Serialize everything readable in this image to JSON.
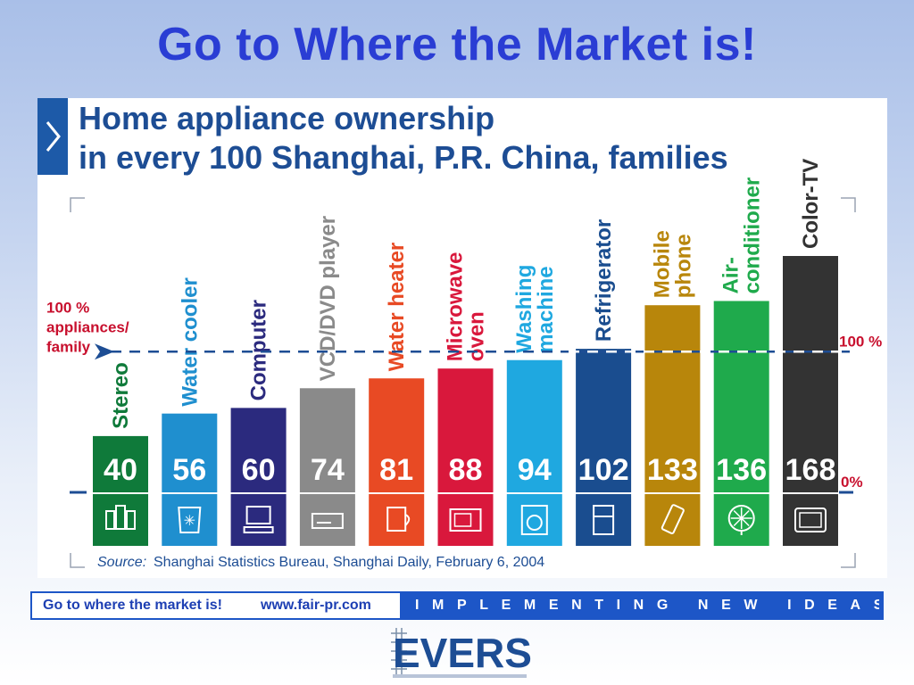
{
  "slide": {
    "title": "Go to Where the Market is!"
  },
  "chart_data": {
    "type": "bar",
    "title_lines": [
      "Home appliance ownership",
      "in every 100 Shanghai, P.R. China, families"
    ],
    "categories": [
      "Stereo",
      "Water cooler",
      "Computer",
      "VCD/DVD player",
      "Water heater",
      "Microwave oven",
      "Washing machine",
      "Refrigerator",
      "Mobile phone",
      "Air-conditioner",
      "Color-TV"
    ],
    "label_lines": [
      [
        "Stereo"
      ],
      [
        "Water cooler"
      ],
      [
        "Computer"
      ],
      [
        "VCD/DVD player"
      ],
      [
        "Water heater"
      ],
      [
        "Microwave",
        "oven"
      ],
      [
        "Washing",
        "machine"
      ],
      [
        "Refrigerator"
      ],
      [
        "Mobile",
        "phone"
      ],
      [
        "Air-",
        "conditioner"
      ],
      [
        "Color-TV"
      ]
    ],
    "values": [
      40,
      56,
      60,
      74,
      81,
      88,
      94,
      102,
      133,
      136,
      168
    ],
    "value_labels": [
      "40",
      "56",
      "60",
      "74",
      "81",
      "88",
      "94",
      "102",
      "133",
      "136",
      "168"
    ],
    "colors": [
      "#0f7a3a",
      "#1f8fcf",
      "#2b2a7e",
      "#8a8a8a",
      "#e84a24",
      "#d9183c",
      "#1fa8e0",
      "#1a4d8f",
      "#b8860b",
      "#1faa4c",
      "#333333"
    ],
    "icons": [
      "stereo-icon",
      "water-cooler-icon",
      "computer-icon",
      "dvd-player-icon",
      "water-heater-icon",
      "microwave-icon",
      "washing-machine-icon",
      "refrigerator-icon",
      "mobile-phone-icon",
      "air-conditioner-icon",
      "tv-icon"
    ],
    "reference_line": {
      "value": 100,
      "left_label": [
        "100 %",
        "appliances/",
        "family"
      ],
      "right_label": "100 %"
    },
    "zero_label": "0%",
    "source_label": "Source:",
    "source_text": "Shanghai Statistics Bureau, Shanghai Daily, February 6, 2004",
    "ylim": [
      0,
      168
    ]
  },
  "footer": {
    "slogan": "Go to where the market is!",
    "url": "www.fair-pr.com",
    "tagline": "IMPLEMENTING NEW IDEAS"
  },
  "logo": {
    "text": "EVERS"
  }
}
